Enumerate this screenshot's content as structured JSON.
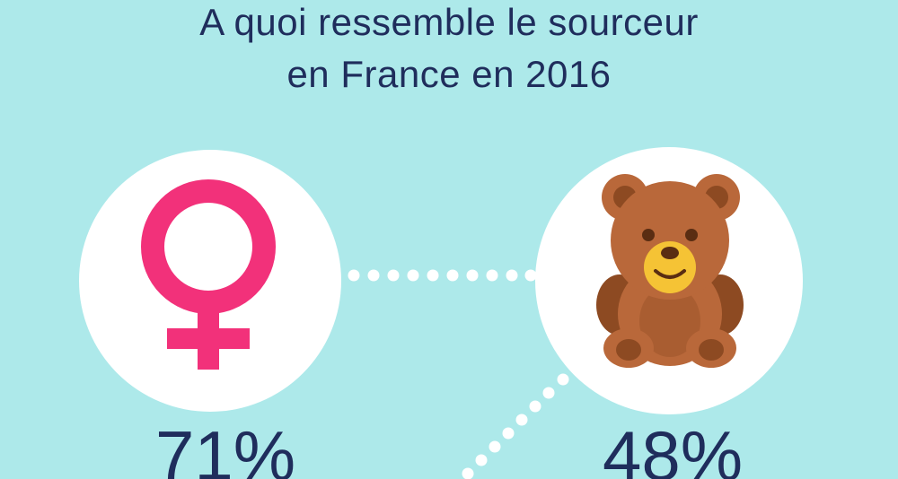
{
  "title": {
    "line1": "A quoi ressemble le sourceur",
    "line2": "en France en 2016"
  },
  "stats": [
    {
      "value": "71%",
      "icon": "venus-icon"
    },
    {
      "value": "48%",
      "icon": "teddy-bear-icon"
    }
  ],
  "colors": {
    "background": "#ade9ea",
    "text": "#1f2d5c",
    "circle": "#ffffff",
    "dots": "#ffffff",
    "venus": "#f2317a",
    "bear_body": "#b9683a",
    "bear_dark": "#8d4a22",
    "bear_muzzle": "#f5c335"
  }
}
